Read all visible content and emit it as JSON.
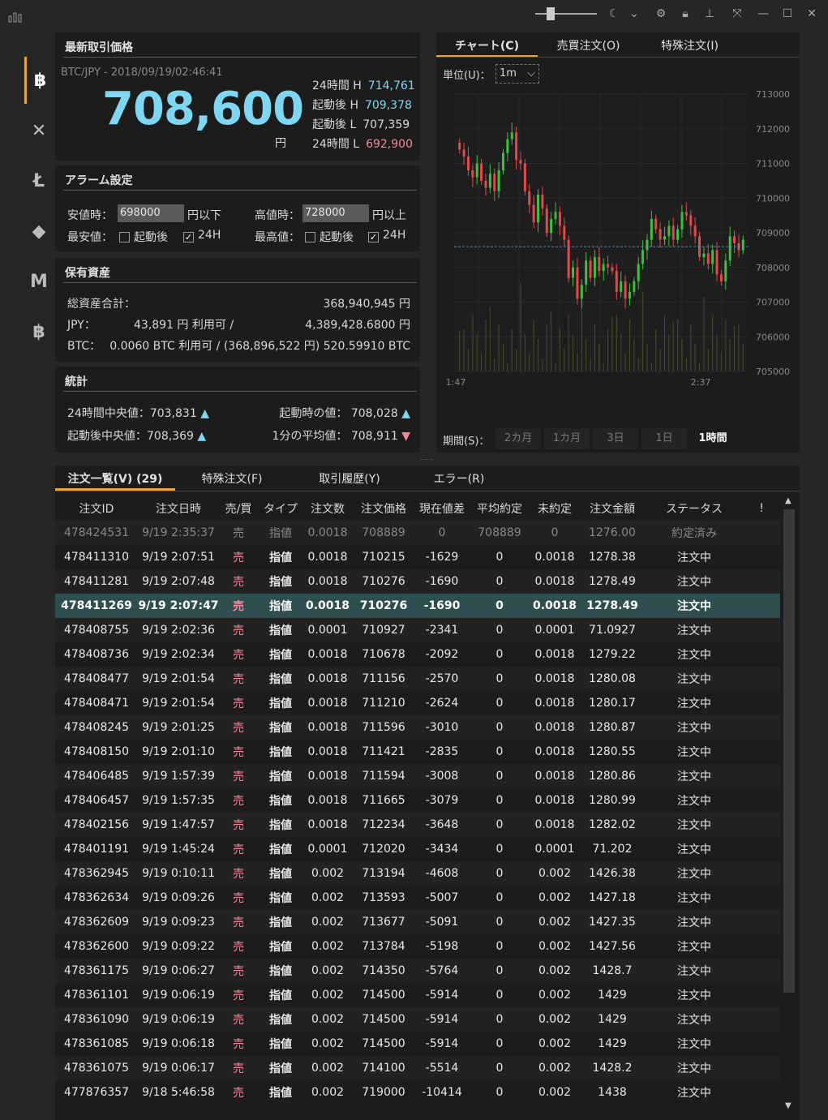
{
  "window": {
    "icons": [
      "chart-icon",
      "moon-icon",
      "chevron-down-icon",
      "gear-icon",
      "lock-icon",
      "pin-icon",
      "collapse-icon",
      "minimize-icon",
      "maximize-icon",
      "close-icon"
    ]
  },
  "sidebar": {
    "items": [
      {
        "name": "bitcoin",
        "glyph": "฿"
      },
      {
        "name": "xrp",
        "glyph": "✕"
      },
      {
        "name": "litecoin",
        "glyph": "Ł"
      },
      {
        "name": "ethereum",
        "glyph": "◆"
      },
      {
        "name": "mona",
        "glyph": "M"
      },
      {
        "name": "bitcoin-cash",
        "glyph": "฿"
      }
    ]
  },
  "latest": {
    "title": "最新取引価格",
    "pair_time": "BTC/JPY - 2018/09/19/02:46:41",
    "price": "708,600",
    "unit": "円",
    "stats": [
      {
        "label": "24時間 H",
        "value": "714,761",
        "color": "#7fd6f0"
      },
      {
        "label": "起動後 H",
        "value": "709,378",
        "color": "#7fd6f0"
      },
      {
        "label": "起動後 L",
        "value": "707,359",
        "color": "#d8d8d8"
      },
      {
        "label": "24時間 L",
        "value": "692,900",
        "color": "#f08aa0"
      }
    ]
  },
  "alarm": {
    "title": "アラーム設定",
    "low_label": "安値時：",
    "low_value": "698000",
    "low_suffix": "円以下",
    "high_label": "高値時：",
    "high_value": "728000",
    "high_suffix": "円以上",
    "min_label": "最安値：",
    "max_label": "最高値：",
    "opt_start": "起動後",
    "opt_24h": "24H"
  },
  "assets": {
    "title": "保有資産",
    "total_label": "総資産合計：",
    "total_value": "368,940,945 円",
    "jpy_label": "JPY：",
    "jpy_value": "43,891 円 利用可 /",
    "jpy_total": "4,389,428.6800 円",
    "btc_label": "BTC：",
    "btc_value": "0.0060 BTC 利用可 / (368,896,522 円) 520.59910 BTC"
  },
  "stats": {
    "title": "統計",
    "median24_label": "24時間中央値：",
    "median24_value": "703,831",
    "start_label": "起動時の値：",
    "start_value": "708,028",
    "median_after_label": "起動後中央値：",
    "median_after_value": "708,369",
    "avg1m_label": "1分の平均値：",
    "avg1m_value": "708,911"
  },
  "chart_panel": {
    "tabs": [
      "チャート(C)",
      "売買注文(O)",
      "特殊注文(I)"
    ],
    "unit_label": "単位(U)：",
    "unit_value": "1m",
    "period_label": "期間(S)：",
    "periods": [
      "2カ月",
      "1カ月",
      "3日",
      "1日",
      "1時間"
    ],
    "active_period": "1時間"
  },
  "chart_data": {
    "type": "candlestick",
    "ylim": [
      705000,
      713000
    ],
    "yticks": [
      "713000",
      "712000",
      "711000",
      "710000",
      "709000",
      "708000",
      "707000",
      "706000",
      "705000"
    ],
    "xticks": [
      "1:47",
      "2:37"
    ],
    "current_price_line": 708600,
    "candles_close": [
      711400,
      711200,
      710800,
      710600,
      711000,
      710500,
      710300,
      710700,
      710200,
      710800,
      711300,
      711700,
      711900,
      711100,
      711000,
      710200,
      709800,
      709300,
      710100,
      709700,
      709000,
      709400,
      709600,
      709200,
      708800,
      707700,
      708000,
      707100,
      707500,
      708200,
      707700,
      708300,
      707900,
      708100,
      708000,
      707900,
      707300,
      707600,
      707100,
      707300,
      707600,
      708100,
      708500,
      708800,
      709400,
      709100,
      708800,
      708900,
      709200,
      708800,
      709100,
      709600,
      709500,
      709200,
      708900,
      708300,
      708400,
      708100,
      708500,
      707800,
      707600,
      708200,
      708900,
      708700,
      708500,
      708800
    ]
  },
  "orders": {
    "tabs": [
      "注文一覧(V) (29)",
      "特殊注文(F)",
      "取引履歴(Y)",
      "エラー(R)"
    ],
    "columns": [
      "注文ID",
      "注文日時",
      "売/買",
      "タイプ",
      "注文数",
      "注文価格",
      "現在値差",
      "平均約定",
      "未約定",
      "注文金額",
      "ステータス",
      "!"
    ],
    "rows": [
      [
        "478424531",
        "9/19 2:35:37",
        "売",
        "指値",
        "0.0018",
        "708889",
        "0",
        "708889",
        "0",
        "1276.00",
        "約定済み"
      ],
      [
        "478411310",
        "9/19 2:07:51",
        "売",
        "指値",
        "0.0018",
        "710215",
        "-1629",
        "0",
        "0.0018",
        "1278.38",
        "注文中"
      ],
      [
        "478411281",
        "9/19 2:07:48",
        "売",
        "指値",
        "0.0018",
        "710276",
        "-1690",
        "0",
        "0.0018",
        "1278.49",
        "注文中"
      ],
      [
        "478411269",
        "9/19 2:07:47",
        "売",
        "指値",
        "0.0018",
        "710276",
        "-1690",
        "0",
        "0.0018",
        "1278.49",
        "注文中"
      ],
      [
        "478408755",
        "9/19 2:02:36",
        "売",
        "指値",
        "0.0001",
        "710927",
        "-2341",
        "0",
        "0.0001",
        "71.0927",
        "注文中"
      ],
      [
        "478408736",
        "9/19 2:02:34",
        "売",
        "指値",
        "0.0018",
        "710678",
        "-2092",
        "0",
        "0.0018",
        "1279.22",
        "注文中"
      ],
      [
        "478408477",
        "9/19 2:01:54",
        "売",
        "指値",
        "0.0018",
        "711156",
        "-2570",
        "0",
        "0.0018",
        "1280.08",
        "注文中"
      ],
      [
        "478408471",
        "9/19 2:01:54",
        "売",
        "指値",
        "0.0018",
        "711210",
        "-2624",
        "0",
        "0.0018",
        "1280.17",
        "注文中"
      ],
      [
        "478408245",
        "9/19 2:01:25",
        "売",
        "指値",
        "0.0018",
        "711596",
        "-3010",
        "0",
        "0.0018",
        "1280.87",
        "注文中"
      ],
      [
        "478408150",
        "9/19 2:01:10",
        "売",
        "指値",
        "0.0018",
        "711421",
        "-2835",
        "0",
        "0.0018",
        "1280.55",
        "注文中"
      ],
      [
        "478406485",
        "9/19 1:57:39",
        "売",
        "指値",
        "0.0018",
        "711594",
        "-3008",
        "0",
        "0.0018",
        "1280.86",
        "注文中"
      ],
      [
        "478406457",
        "9/19 1:57:35",
        "売",
        "指値",
        "0.0018",
        "711665",
        "-3079",
        "0",
        "0.0018",
        "1280.99",
        "注文中"
      ],
      [
        "478402156",
        "9/19 1:47:57",
        "売",
        "指値",
        "0.0018",
        "712234",
        "-3648",
        "0",
        "0.0018",
        "1282.02",
        "注文中"
      ],
      [
        "478401191",
        "9/19 1:45:24",
        "売",
        "指値",
        "0.0001",
        "712020",
        "-3434",
        "0",
        "0.0001",
        "71.202",
        "注文中"
      ],
      [
        "478362945",
        "9/19 0:10:11",
        "売",
        "指値",
        "0.002",
        "713194",
        "-4608",
        "0",
        "0.002",
        "1426.38",
        "注文中"
      ],
      [
        "478362634",
        "9/19 0:09:26",
        "売",
        "指値",
        "0.002",
        "713593",
        "-5007",
        "0",
        "0.002",
        "1427.18",
        "注文中"
      ],
      [
        "478362609",
        "9/19 0:09:23",
        "売",
        "指値",
        "0.002",
        "713677",
        "-5091",
        "0",
        "0.002",
        "1427.35",
        "注文中"
      ],
      [
        "478362600",
        "9/19 0:09:22",
        "売",
        "指値",
        "0.002",
        "713784",
        "-5198",
        "0",
        "0.002",
        "1427.56",
        "注文中"
      ],
      [
        "478361175",
        "9/19 0:06:27",
        "売",
        "指値",
        "0.002",
        "714350",
        "-5764",
        "0",
        "0.002",
        "1428.7",
        "注文中"
      ],
      [
        "478361101",
        "9/19 0:06:19",
        "売",
        "指値",
        "0.002",
        "714500",
        "-5914",
        "0",
        "0.002",
        "1429",
        "注文中"
      ],
      [
        "478361090",
        "9/19 0:06:19",
        "売",
        "指値",
        "0.002",
        "714500",
        "-5914",
        "0",
        "0.002",
        "1429",
        "注文中"
      ],
      [
        "478361085",
        "9/19 0:06:18",
        "売",
        "指値",
        "0.002",
        "714500",
        "-5914",
        "0",
        "0.002",
        "1429",
        "注文中"
      ],
      [
        "478361075",
        "9/19 0:06:17",
        "売",
        "指値",
        "0.002",
        "714100",
        "-5514",
        "0",
        "0.002",
        "1428.2",
        "注文中"
      ],
      [
        "477876357",
        "9/18 5:46:58",
        "売",
        "指値",
        "0.002",
        "719000",
        "-10414",
        "0",
        "0.002",
        "1438",
        "注文中"
      ]
    ],
    "selected_index": 3
  }
}
